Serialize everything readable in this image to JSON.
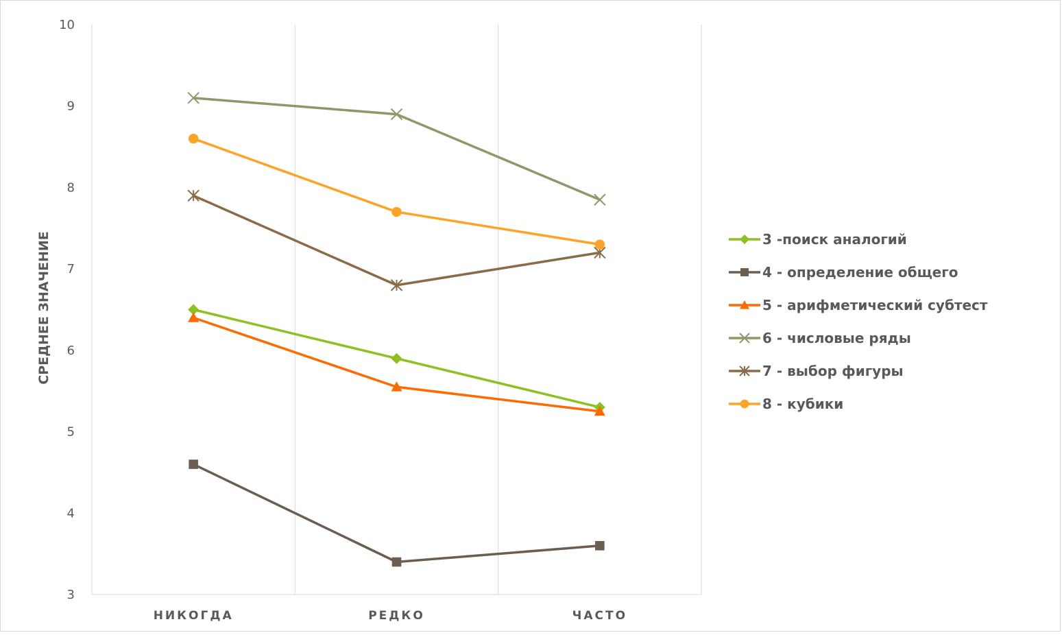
{
  "chart_data": {
    "type": "line",
    "categories": [
      "НИКОГДА",
      "РЕДКО",
      "ЧАСТО"
    ],
    "ylabel": "СРЕДНЕЕ ЗНАЧЕНИЕ",
    "ylim": [
      3,
      10
    ],
    "yticks": [
      3,
      4,
      5,
      6,
      7,
      8,
      9,
      10
    ],
    "grid": "vertical",
    "legend_position": "right",
    "series": [
      {
        "name": "3 -поиск аналогий",
        "values": [
          6.5,
          5.9,
          5.3
        ],
        "color": "#8cc11f",
        "marker": "diamond"
      },
      {
        "name": "4 - определение общего",
        "values": [
          4.6,
          3.4,
          3.6
        ],
        "color": "#6b5e4f",
        "marker": "square"
      },
      {
        "name": "5 - арифметический субтест",
        "values": [
          6.4,
          5.55,
          5.25
        ],
        "color": "#ff6a00",
        "marker": "triangle"
      },
      {
        "name": "6 - числовые ряды",
        "values": [
          9.1,
          8.9,
          7.85
        ],
        "color": "#8a9a68",
        "marker": "x"
      },
      {
        "name": "7 - выбор фигуры",
        "values": [
          7.9,
          6.8,
          7.2
        ],
        "color": "#8b6a48",
        "marker": "star"
      },
      {
        "name": "8 - кубики",
        "values": [
          8.6,
          7.7,
          7.3
        ],
        "color": "#ffa326",
        "marker": "circle"
      }
    ]
  }
}
